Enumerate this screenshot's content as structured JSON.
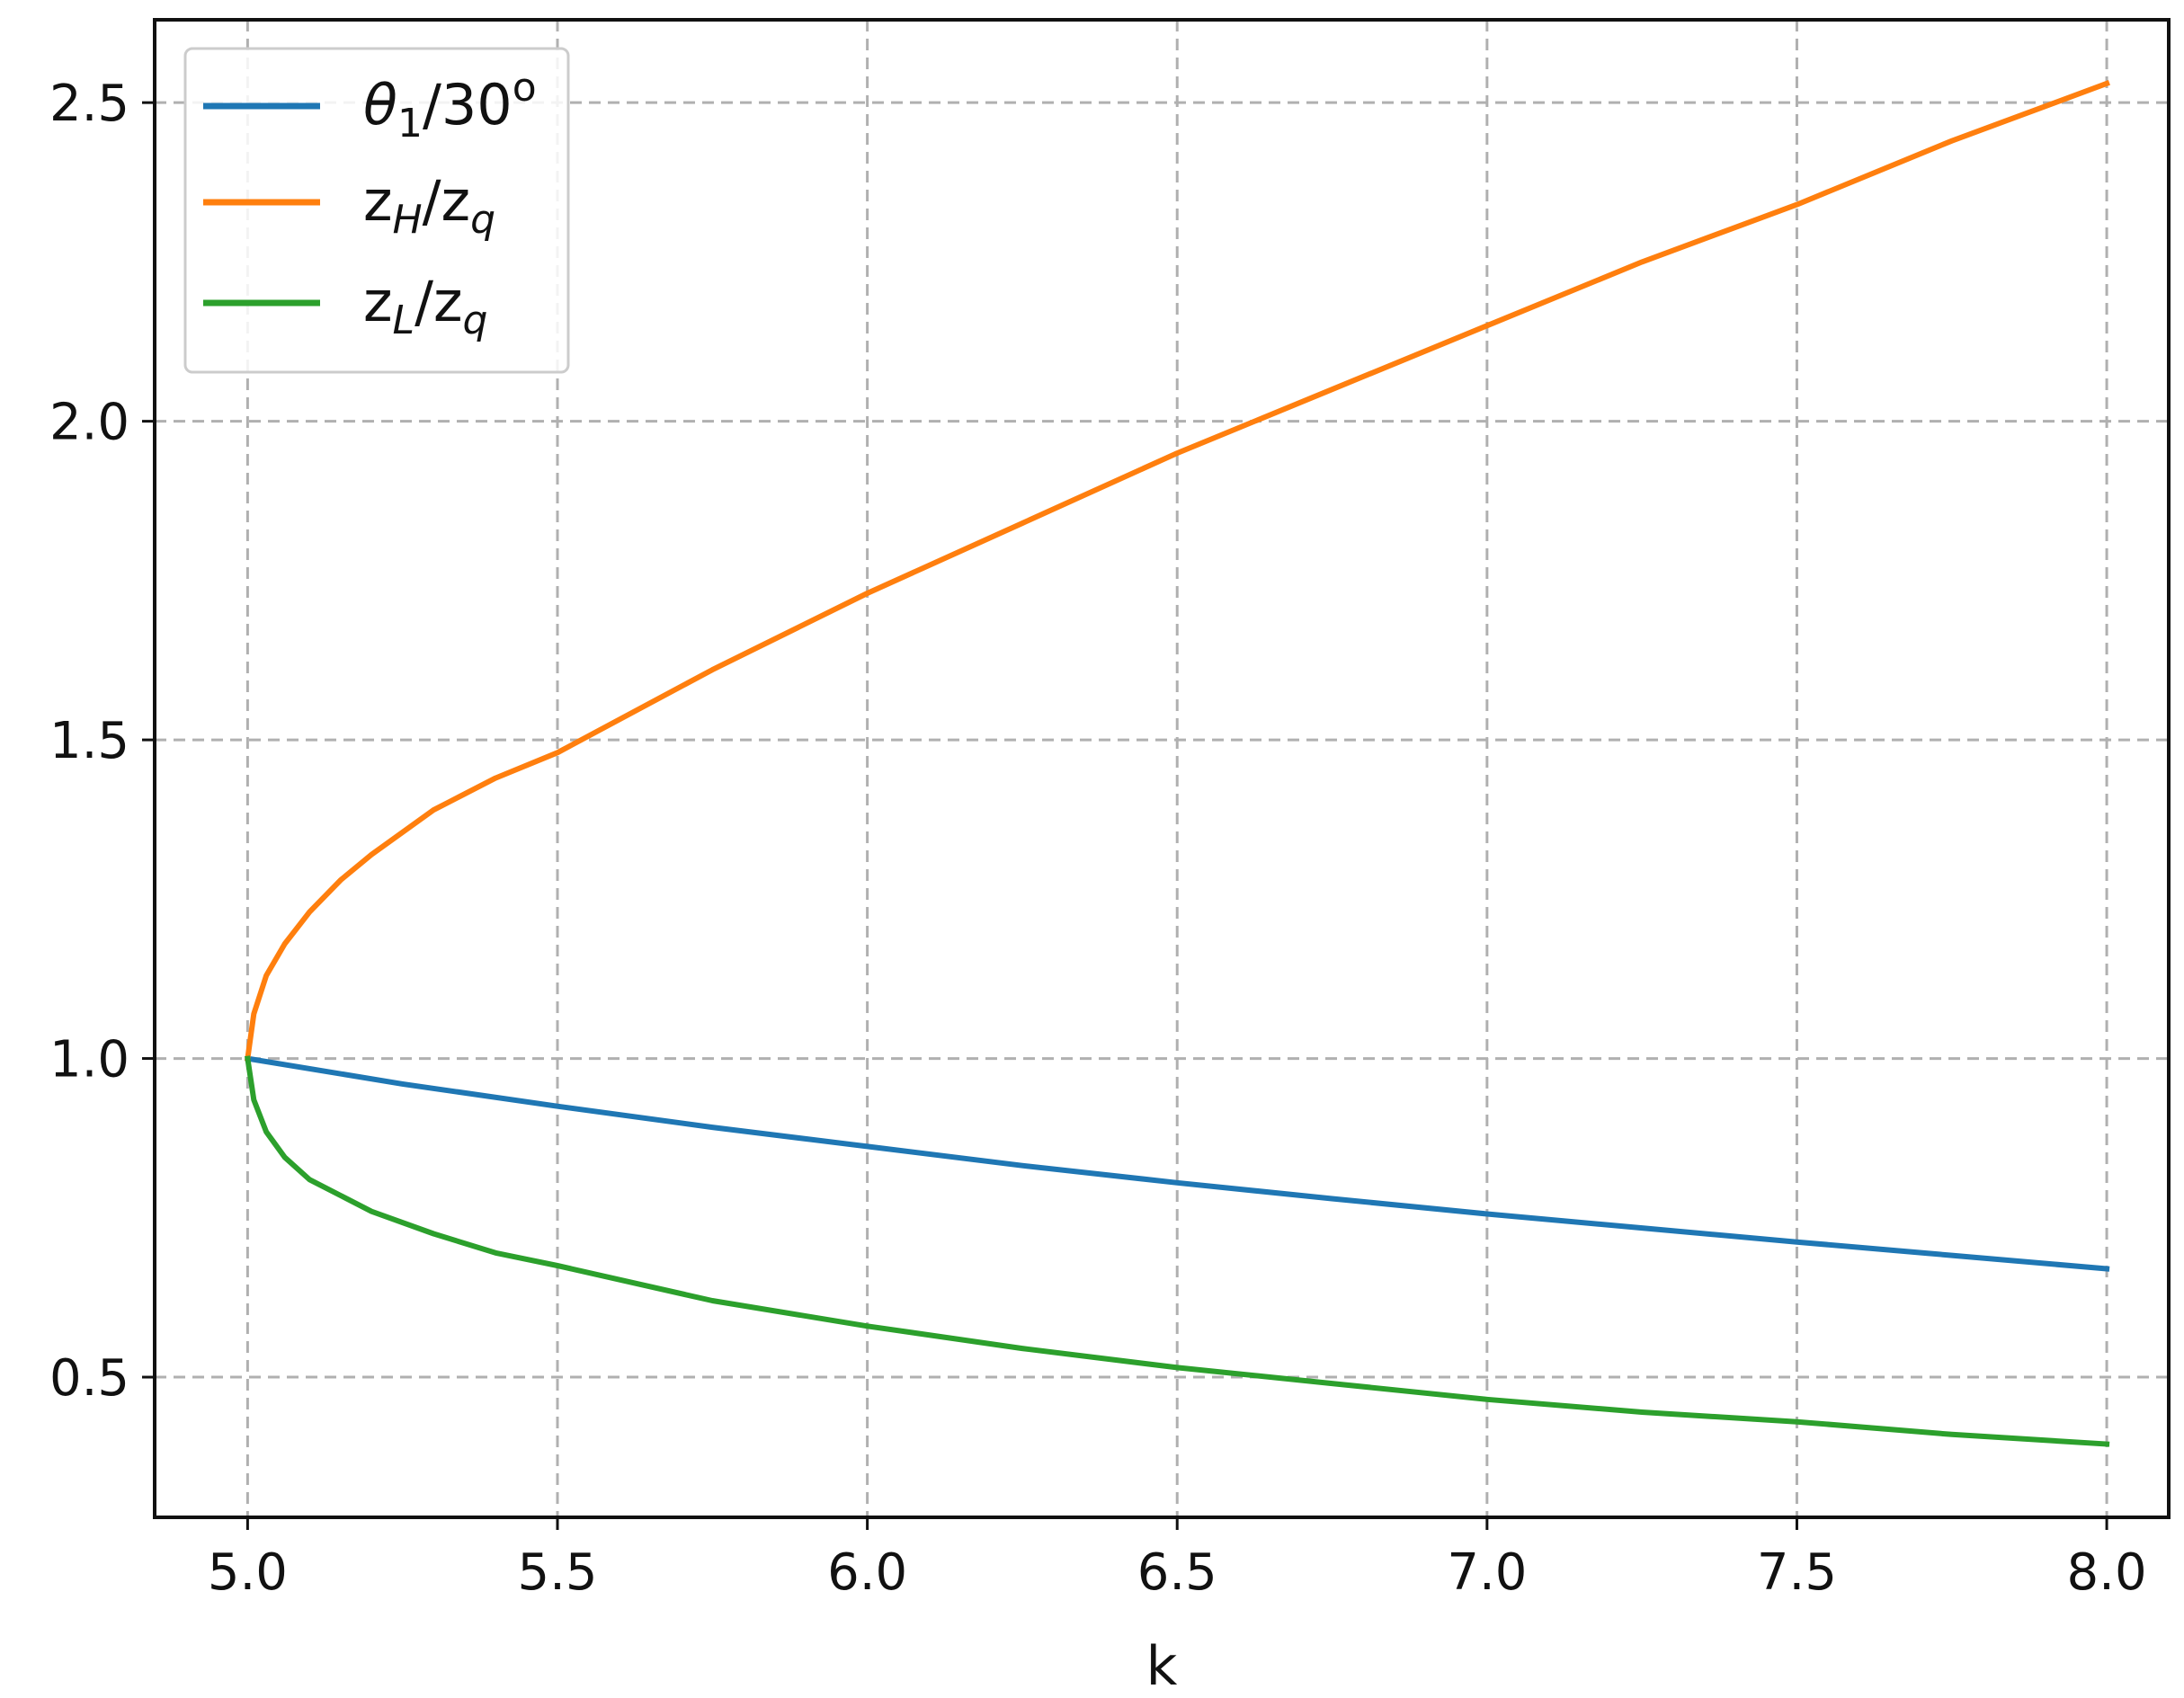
{
  "chart_data": {
    "type": "line",
    "xlabel": "k",
    "ylabel": "",
    "title": "",
    "xlim": [
      4.85,
      8.1
    ],
    "ylim": [
      0.28,
      2.63
    ],
    "xticks": [
      5.0,
      5.5,
      6.0,
      6.5,
      7.0,
      7.5,
      8.0
    ],
    "xtick_labels": [
      "5.0",
      "5.5",
      "6.0",
      "6.5",
      "7.0",
      "7.5",
      "8.0"
    ],
    "yticks": [
      0.5,
      1.0,
      1.5,
      2.0,
      2.5
    ],
    "ytick_labels": [
      "0.5",
      "1.0",
      "1.5",
      "2.0",
      "2.5"
    ],
    "grid": true,
    "legend_position": "top-left",
    "series": [
      {
        "name": "θ1/30o",
        "legend": {
          "main": "θ",
          "sub": "1",
          "tail": "/30",
          "sup": "o"
        },
        "color": "#1f77b4",
        "x": [
          5.0,
          5.25,
          5.5,
          5.75,
          6.0,
          6.25,
          6.5,
          6.75,
          7.0,
          7.25,
          7.5,
          7.75,
          8.0
        ],
        "y": [
          1.0,
          0.96,
          0.925,
          0.892,
          0.862,
          0.832,
          0.805,
          0.78,
          0.756,
          0.734,
          0.712,
          0.691,
          0.67
        ]
      },
      {
        "name": "zH/zq",
        "legend": {
          "main": "z",
          "sub": "H",
          "tail": "/z",
          "sub2": "q"
        },
        "color": "#ff7f0e",
        "x": [
          5.0,
          5.01,
          5.03,
          5.06,
          5.1,
          5.15,
          5.2,
          5.3,
          5.4,
          5.5,
          5.75,
          6.0,
          6.25,
          6.5,
          6.75,
          7.0,
          7.25,
          7.5,
          7.75,
          8.0
        ],
        "y": [
          1.0,
          1.07,
          1.13,
          1.18,
          1.23,
          1.28,
          1.32,
          1.39,
          1.44,
          1.48,
          1.61,
          1.73,
          1.84,
          1.95,
          2.05,
          2.15,
          2.25,
          2.34,
          2.44,
          2.53
        ]
      },
      {
        "name": "zL/zq",
        "legend": {
          "main": "z",
          "sub": "L",
          "tail": "/z",
          "sub2": "q"
        },
        "color": "#2ca02c",
        "x": [
          5.0,
          5.01,
          5.03,
          5.06,
          5.1,
          5.15,
          5.2,
          5.3,
          5.4,
          5.5,
          5.75,
          6.0,
          6.25,
          6.5,
          6.75,
          7.0,
          7.25,
          7.5,
          7.75,
          8.0
        ],
        "y": [
          1.0,
          0.935,
          0.885,
          0.845,
          0.81,
          0.785,
          0.76,
          0.725,
          0.695,
          0.675,
          0.62,
          0.58,
          0.545,
          0.515,
          0.49,
          0.465,
          0.445,
          0.43,
          0.41,
          0.395
        ]
      }
    ]
  }
}
